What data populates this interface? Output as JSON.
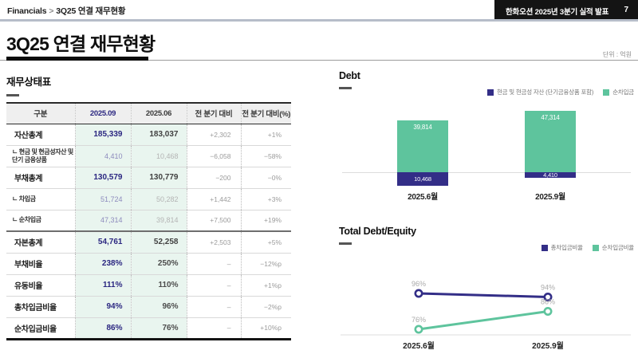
{
  "topbar": {
    "breadcrumb_root": "Financials",
    "breadcrumb_separator": ">",
    "breadcrumb_current": "3Q25 연결 재무현황",
    "deck_title": "한화오션 2025년 3분기 실적 발표",
    "page_number": "7"
  },
  "page": {
    "title": "3Q25 연결 재무현황",
    "unit_label": "단위 : 억원"
  },
  "table_section": {
    "title": "재무상태표",
    "columns": [
      "구분",
      "2025.09",
      "2025.06",
      "전 분기 대비",
      "전 분기 대비(%)"
    ],
    "rows": [
      {
        "type": "main",
        "label": "자산총계",
        "v1": "185,339",
        "v2": "183,037",
        "d1": "+2,302",
        "d2": "+1%"
      },
      {
        "type": "sub",
        "label": "ㄴ 현금 및 현금성자산 및 단기 금융상품",
        "v1": "4,410",
        "v2": "10,468",
        "d1": "−6,058",
        "d2": "−58%"
      },
      {
        "type": "main",
        "label": "부채총계",
        "v1": "130,579",
        "v2": "130,779",
        "d1": "−200",
        "d2": "−0%"
      },
      {
        "type": "sub",
        "label": "ㄴ 차입금",
        "v1": "51,724",
        "v2": "50,282",
        "d1": "+1,442",
        "d2": "+3%"
      },
      {
        "type": "sub",
        "label": "ㄴ 순차입금",
        "v1": "47,314",
        "v2": "39,814",
        "d1": "+7,500",
        "d2": "+19%"
      },
      {
        "type": "main",
        "label": "자본총계",
        "v1": "54,761",
        "v2": "52,258",
        "d1": "+2,503",
        "d2": "+5%",
        "strong_top": true
      },
      {
        "type": "ratio",
        "label": "부채비율",
        "v1": "238%",
        "v2": "250%",
        "d1": "–",
        "d2": "−12%p"
      },
      {
        "type": "ratio",
        "label": "유동비율",
        "v1": "111%",
        "v2": "110%",
        "d1": "–",
        "d2": "+1%p"
      },
      {
        "type": "ratio",
        "label": "총차입금비율",
        "v1": "94%",
        "v2": "96%",
        "d1": "–",
        "d2": "−2%p"
      },
      {
        "type": "ratio",
        "label": "순차입금비율",
        "v1": "86%",
        "v2": "76%",
        "d1": "–",
        "d2": "+10%p"
      }
    ]
  },
  "colors": {
    "navy": "#332e87",
    "green": "#5ec49d",
    "navy_text": "#2b2781",
    "mint_bg": "#e9f5ef",
    "header_bg": "#efefef",
    "topbar_box": "#141414",
    "top_divider": "#b6bdc9",
    "gray_label": "#a9a9a9"
  },
  "chart_data": [
    {
      "type": "bar",
      "title": "Debt",
      "stacked": true,
      "categories": [
        "2025.6월",
        "2025.9월"
      ],
      "series": [
        {
          "name": "현금 및 현금성 자산 (단기금융상품 포함)",
          "color": "#332e87",
          "values": [
            10468,
            4410
          ],
          "labels": [
            "10,468",
            "4,410"
          ],
          "direction": "below-axis"
        },
        {
          "name": "순차입금",
          "color": "#5ec49d",
          "values": [
            39814,
            47314
          ],
          "labels": [
            "39,814",
            "47,314"
          ],
          "direction": "above-axis"
        }
      ],
      "legend_position": "top-right",
      "value_labels": "inside-white"
    },
    {
      "type": "line",
      "title": "Total Debt/Equity",
      "categories": [
        "2025.6월",
        "2025.9월"
      ],
      "series": [
        {
          "name": "총차입금비율",
          "color": "#332e87",
          "values": [
            96,
            94
          ],
          "labels": [
            "96%",
            "94%"
          ]
        },
        {
          "name": "순차입금비율",
          "color": "#5ec49d",
          "values": [
            76,
            86
          ],
          "labels": [
            "76%",
            "86%"
          ]
        }
      ],
      "legend_position": "top-right",
      "marker": "open-circle",
      "ylim": [
        70,
        100
      ]
    }
  ]
}
